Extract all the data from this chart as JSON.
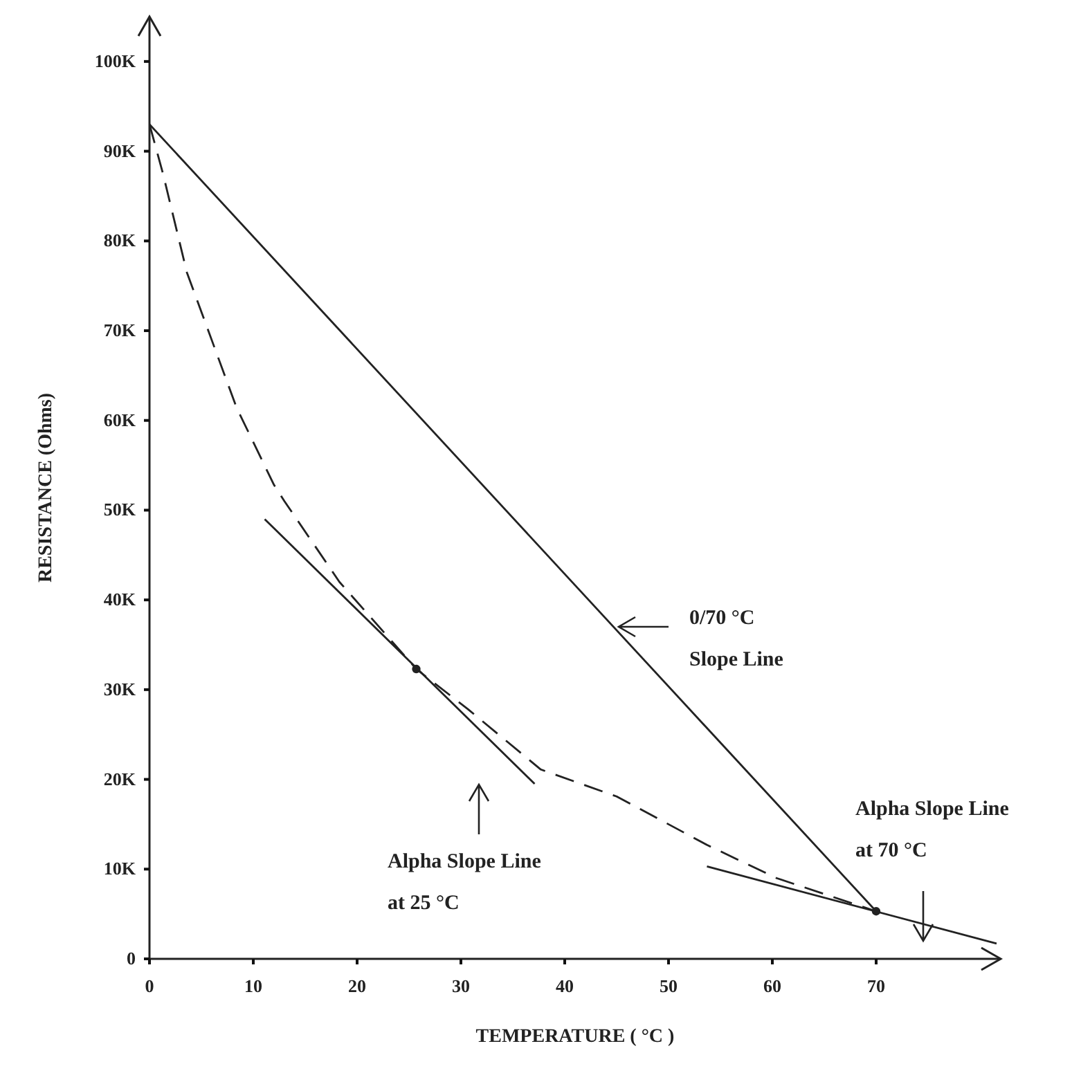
{
  "chart_data": {
    "type": "line",
    "xlabel": "TEMPERATURE ( °C )",
    "ylabel": "RESISTANCE (Ohms)",
    "xlim": [
      0,
      82
    ],
    "ylim": [
      0,
      105000
    ],
    "xticks": [
      0,
      10,
      20,
      30,
      40,
      50,
      60,
      70
    ],
    "yticks": [
      0,
      {
        "value": 10000,
        "label": "10K"
      },
      {
        "value": 20000,
        "label": "20K"
      },
      {
        "value": 30000,
        "label": "30K"
      },
      {
        "value": 40000,
        "label": "40K"
      },
      {
        "value": 50000,
        "label": "50K"
      },
      {
        "value": 60000,
        "label": "60K"
      },
      {
        "value": 70000,
        "label": "70K"
      },
      {
        "value": 80000,
        "label": "80K"
      },
      {
        "value": 90000,
        "label": "90K"
      },
      {
        "value": 100000,
        "label": "100K"
      }
    ],
    "series": [
      {
        "color": "#222222",
        "line_style": "dashed",
        "marker": "none",
        "x": [
          0,
          1.3,
          3.6,
          6.3,
          8.4,
          12,
          13,
          18.3,
          25.7,
          30.7,
          37.7,
          45,
          53.7,
          60.4,
          70
        ],
        "values": [
          93000,
          87500,
          76500,
          68000,
          61400,
          52800,
          51000,
          42000,
          32300,
          27800,
          21100,
          18100,
          12700,
          9000,
          5300
        ]
      },
      {
        "color": "#222222",
        "line_style": "solid",
        "marker": "none",
        "x": [
          0,
          70
        ],
        "values": [
          93000,
          5300
        ]
      },
      {
        "color": "#222222",
        "line_style": "solid",
        "marker": "none",
        "x": [
          11.1,
          37.1
        ],
        "values": [
          49000,
          19500
        ]
      },
      {
        "color": "#222222",
        "line_style": "solid",
        "marker": "none",
        "x": [
          53.7,
          81.6
        ],
        "values": [
          10300,
          1700
        ]
      },
      {
        "type": "scatter",
        "color": "#222222",
        "marker": "circle",
        "x": [
          25.7,
          70
        ],
        "values": [
          32300,
          5300
        ]
      }
    ],
    "annotations": [
      "0/70 °C\nSlope Line",
      "Alpha Slope Line\nat 25 °C",
      "Alpha Slope Line\nat 70 °C"
    ]
  }
}
